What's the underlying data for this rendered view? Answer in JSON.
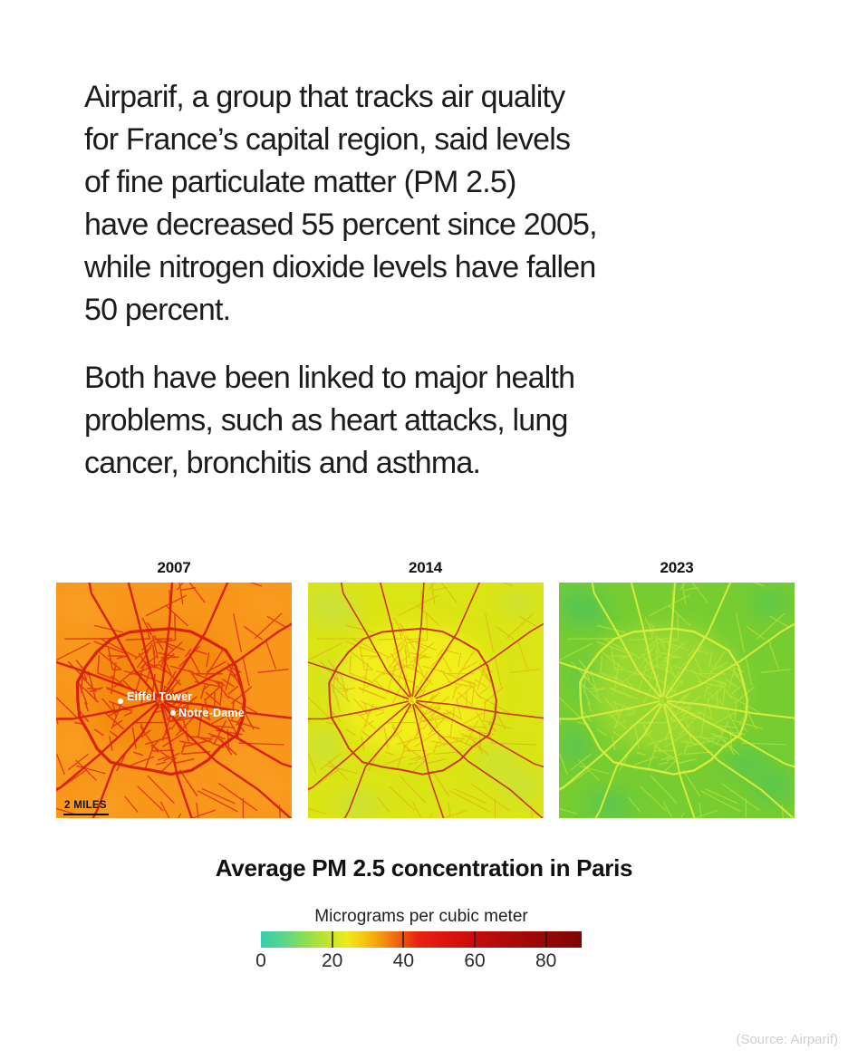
{
  "article": {
    "paragraphs": [
      {
        "lines": [
          "Airparif, a group that tracks air quality",
          "for France’s capital region, said levels",
          "of fine particulate matter (PM 2.5)",
          "have decreased 55 percent since 2005,",
          "while nitrogen dioxide levels have fallen",
          "50 percent."
        ]
      },
      {
        "lines": [
          "Both have been linked to major health",
          "problems, such as heart attacks, lung",
          "cancer, bronchitis and asthma."
        ]
      }
    ]
  },
  "chart_data": {
    "type": "heatmap",
    "title": "Average PM 2.5 concentration in Paris",
    "layout": "three small-multiple pollution maps of Paris by year with shared color scale",
    "maps": [
      {
        "year": "2007",
        "bg": "#F8971B",
        "inner": "#F07E06",
        "innerOpacity": 0.5,
        "major": "#D8220C",
        "minor": "#E23711",
        "minorOpacity": 0.95,
        "patch": "#FBA72E",
        "patchOpacity": 0.4,
        "landmarks": [
          {
            "name": "Eiffel Tower"
          },
          {
            "name": "Notre-Dame"
          }
        ],
        "scale_bar": {
          "label": "2 MILES"
        }
      },
      {
        "year": "2014",
        "bg": "#DBE414",
        "inner": "#F5F11E",
        "innerOpacity": 0.85,
        "major": "#C9380E",
        "minor": "#DE8E12",
        "minorOpacity": 0.5,
        "patch": "#C3E04A",
        "patchOpacity": 0.75
      },
      {
        "year": "2023",
        "bg": "#77CC31",
        "inner": "#9DD932",
        "innerOpacity": 0.9,
        "major": "#D3EC3E",
        "minor": "#BCE437",
        "minorOpacity": 0.75,
        "patch": "#4EC45C",
        "patchOpacity": 0.8
      }
    ],
    "legend": {
      "label": "Micrograms per cubic meter",
      "range": [
        0,
        90
      ],
      "ticks": [
        0,
        20,
        40,
        60,
        80
      ],
      "gradient": [
        {
          "value": 0,
          "color": "#35CFB0"
        },
        {
          "value": 7,
          "color": "#5FD687"
        },
        {
          "value": 13,
          "color": "#94DE4C"
        },
        {
          "value": 19,
          "color": "#C3E52B"
        },
        {
          "value": 24,
          "color": "#EBEC1C"
        },
        {
          "value": 29,
          "color": "#F6C515"
        },
        {
          "value": 34,
          "color": "#F49310"
        },
        {
          "value": 39,
          "color": "#EE5D0D"
        },
        {
          "value": 44,
          "color": "#E8230F"
        },
        {
          "value": 52,
          "color": "#DC1310"
        },
        {
          "value": 62,
          "color": "#C10C0C"
        },
        {
          "value": 72,
          "color": "#A80909"
        },
        {
          "value": 82,
          "color": "#930707"
        },
        {
          "value": 90,
          "color": "#7E0606"
        }
      ]
    }
  },
  "source": {
    "text": "(Source: Airparif)"
  }
}
